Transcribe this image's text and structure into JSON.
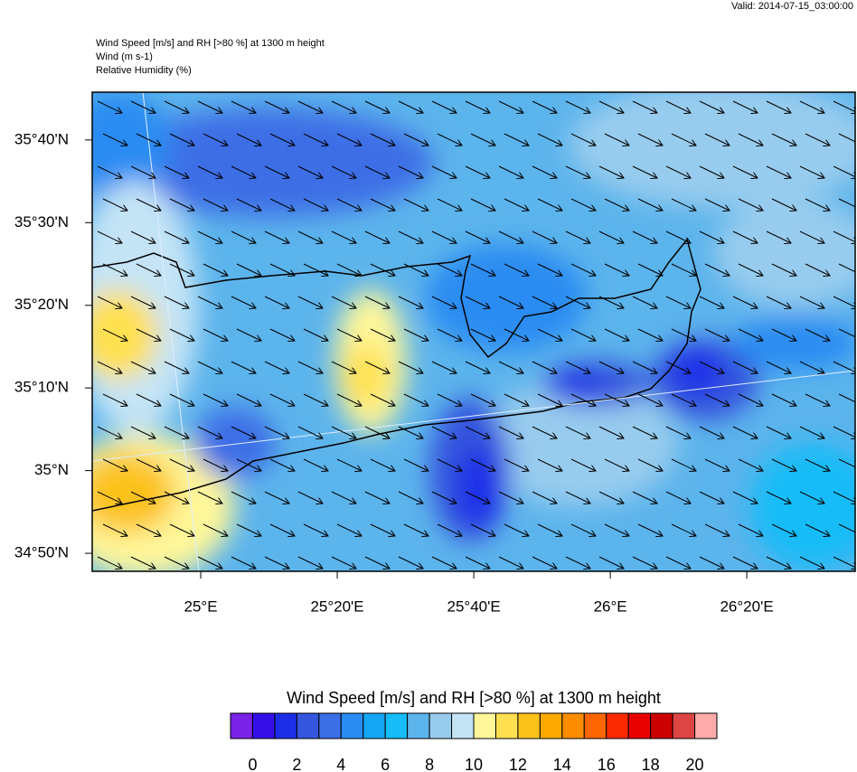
{
  "map": {
    "valid": "Valid: 2014-07-15_03:00:00",
    "title_lines": [
      "Wind Speed [m/s] and RH [>80 %] at 1300 m height",
      "Wind   (m s-1)",
      "Relative Humidity   (%)"
    ],
    "lat_range": [
      34.797,
      35.763
    ],
    "lon_range": [
      24.735,
      26.598
    ],
    "lat_ticks": [
      {
        "value": 35.6667,
        "label": "35°40'N"
      },
      {
        "value": 35.5,
        "label": "35°30'N"
      },
      {
        "value": 35.3333,
        "label": "35°20'N"
      },
      {
        "value": 35.1667,
        "label": "35°10'N"
      },
      {
        "value": 35,
        "label": "35°N"
      },
      {
        "value": 34.8333,
        "label": "34°50'N"
      }
    ],
    "lon_ticks": [
      {
        "value": 25,
        "label": "25°E"
      },
      {
        "value": 25.3333,
        "label": "25°20'E"
      },
      {
        "value": 25.6667,
        "label": "25°40'E"
      },
      {
        "value": 26,
        "label": "26°E"
      },
      {
        "value": 26.3333,
        "label": "26°20'E"
      }
    ],
    "colorbar": {
      "title": "Wind Speed [m/s] and RH [>80 %] at 1300 m height",
      "colors": [
        "#7a22e6",
        "#3510e8",
        "#1c2ee8",
        "#3555dd",
        "#3c6ee6",
        "#2a8cf2",
        "#15a6f5",
        "#16bcf7",
        "#5cb4ec",
        "#98ccee",
        "#c4e4f6",
        "#fff79a",
        "#ffe050",
        "#fcc21c",
        "#fca900",
        "#fc8c00",
        "#fc6600",
        "#fc2a00",
        "#e80000",
        "#cc0000",
        "#dd4444",
        "#fdaaaa"
      ],
      "ticks": [
        0,
        2,
        4,
        6,
        8,
        10,
        12,
        14,
        16,
        18,
        20
      ]
    }
  }
}
